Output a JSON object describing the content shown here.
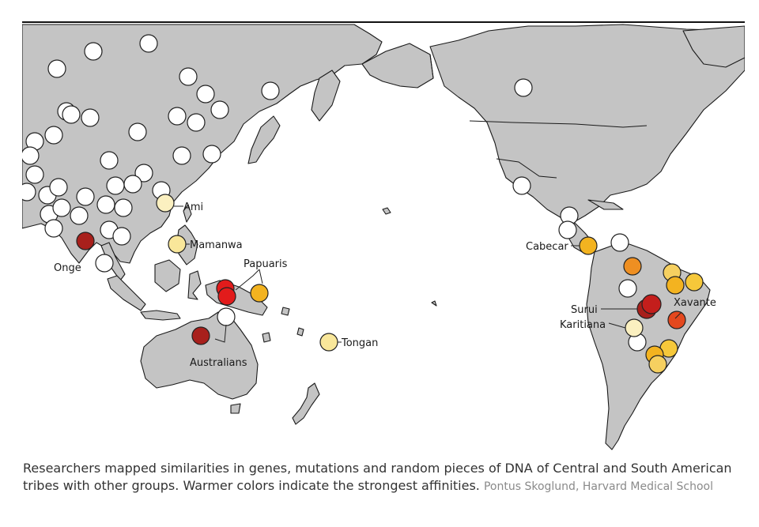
{
  "caption": {
    "text": "Researchers mapped similarities in genes, mutations and random pieces of DNA of Central and South American tribes with other groups. Warmer colors indicate the strongest affinities.",
    "credit": "Pontus Skoglund, Harvard Medical School"
  },
  "colors": {
    "ocean": "#ffffff",
    "land": "#c4c4c4",
    "no_affinity": "#ffffff",
    "pale": "#fbf0c0",
    "light_yellow": "#f9e79a",
    "yellow": "#f6c83a",
    "gold": "#f3b320",
    "orange": "#ee8f22",
    "red_orange": "#e4481e",
    "red": "#e21b1b",
    "dark_red": "#a8201c"
  },
  "labels": {
    "ami": "Ami",
    "mamanwa": "Mamanwa",
    "onge": "Onge",
    "papuaris": "Papuaris",
    "australians": "Australians",
    "tongan": "Tongan",
    "cabecar": "Cabecar",
    "surui": "Surui",
    "karitiana": "Karitiana",
    "xavante": "Xavante"
  }
}
